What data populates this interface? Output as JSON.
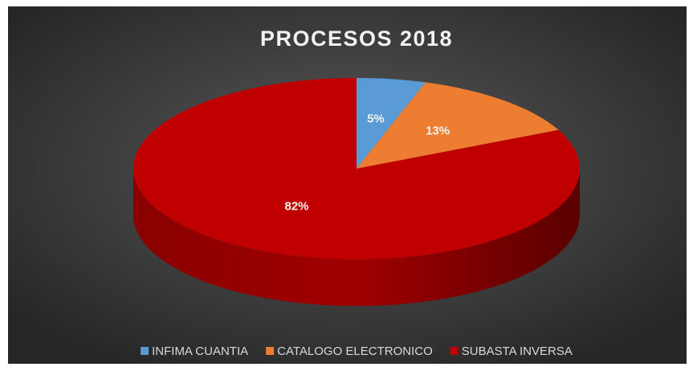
{
  "chart_data": {
    "type": "pie",
    "title": "PROCESOS 2018",
    "categories": [
      "INFIMA CUANTIA",
      "CATALOGO ELECTRONICO",
      "SUBASTA INVERSA"
    ],
    "values": [
      5,
      13,
      82
    ],
    "value_labels": [
      "5%",
      "13%",
      "82%"
    ],
    "colors": [
      "#5b9bd5",
      "#ed7d31",
      "#c00000"
    ],
    "legend": "bottom"
  }
}
